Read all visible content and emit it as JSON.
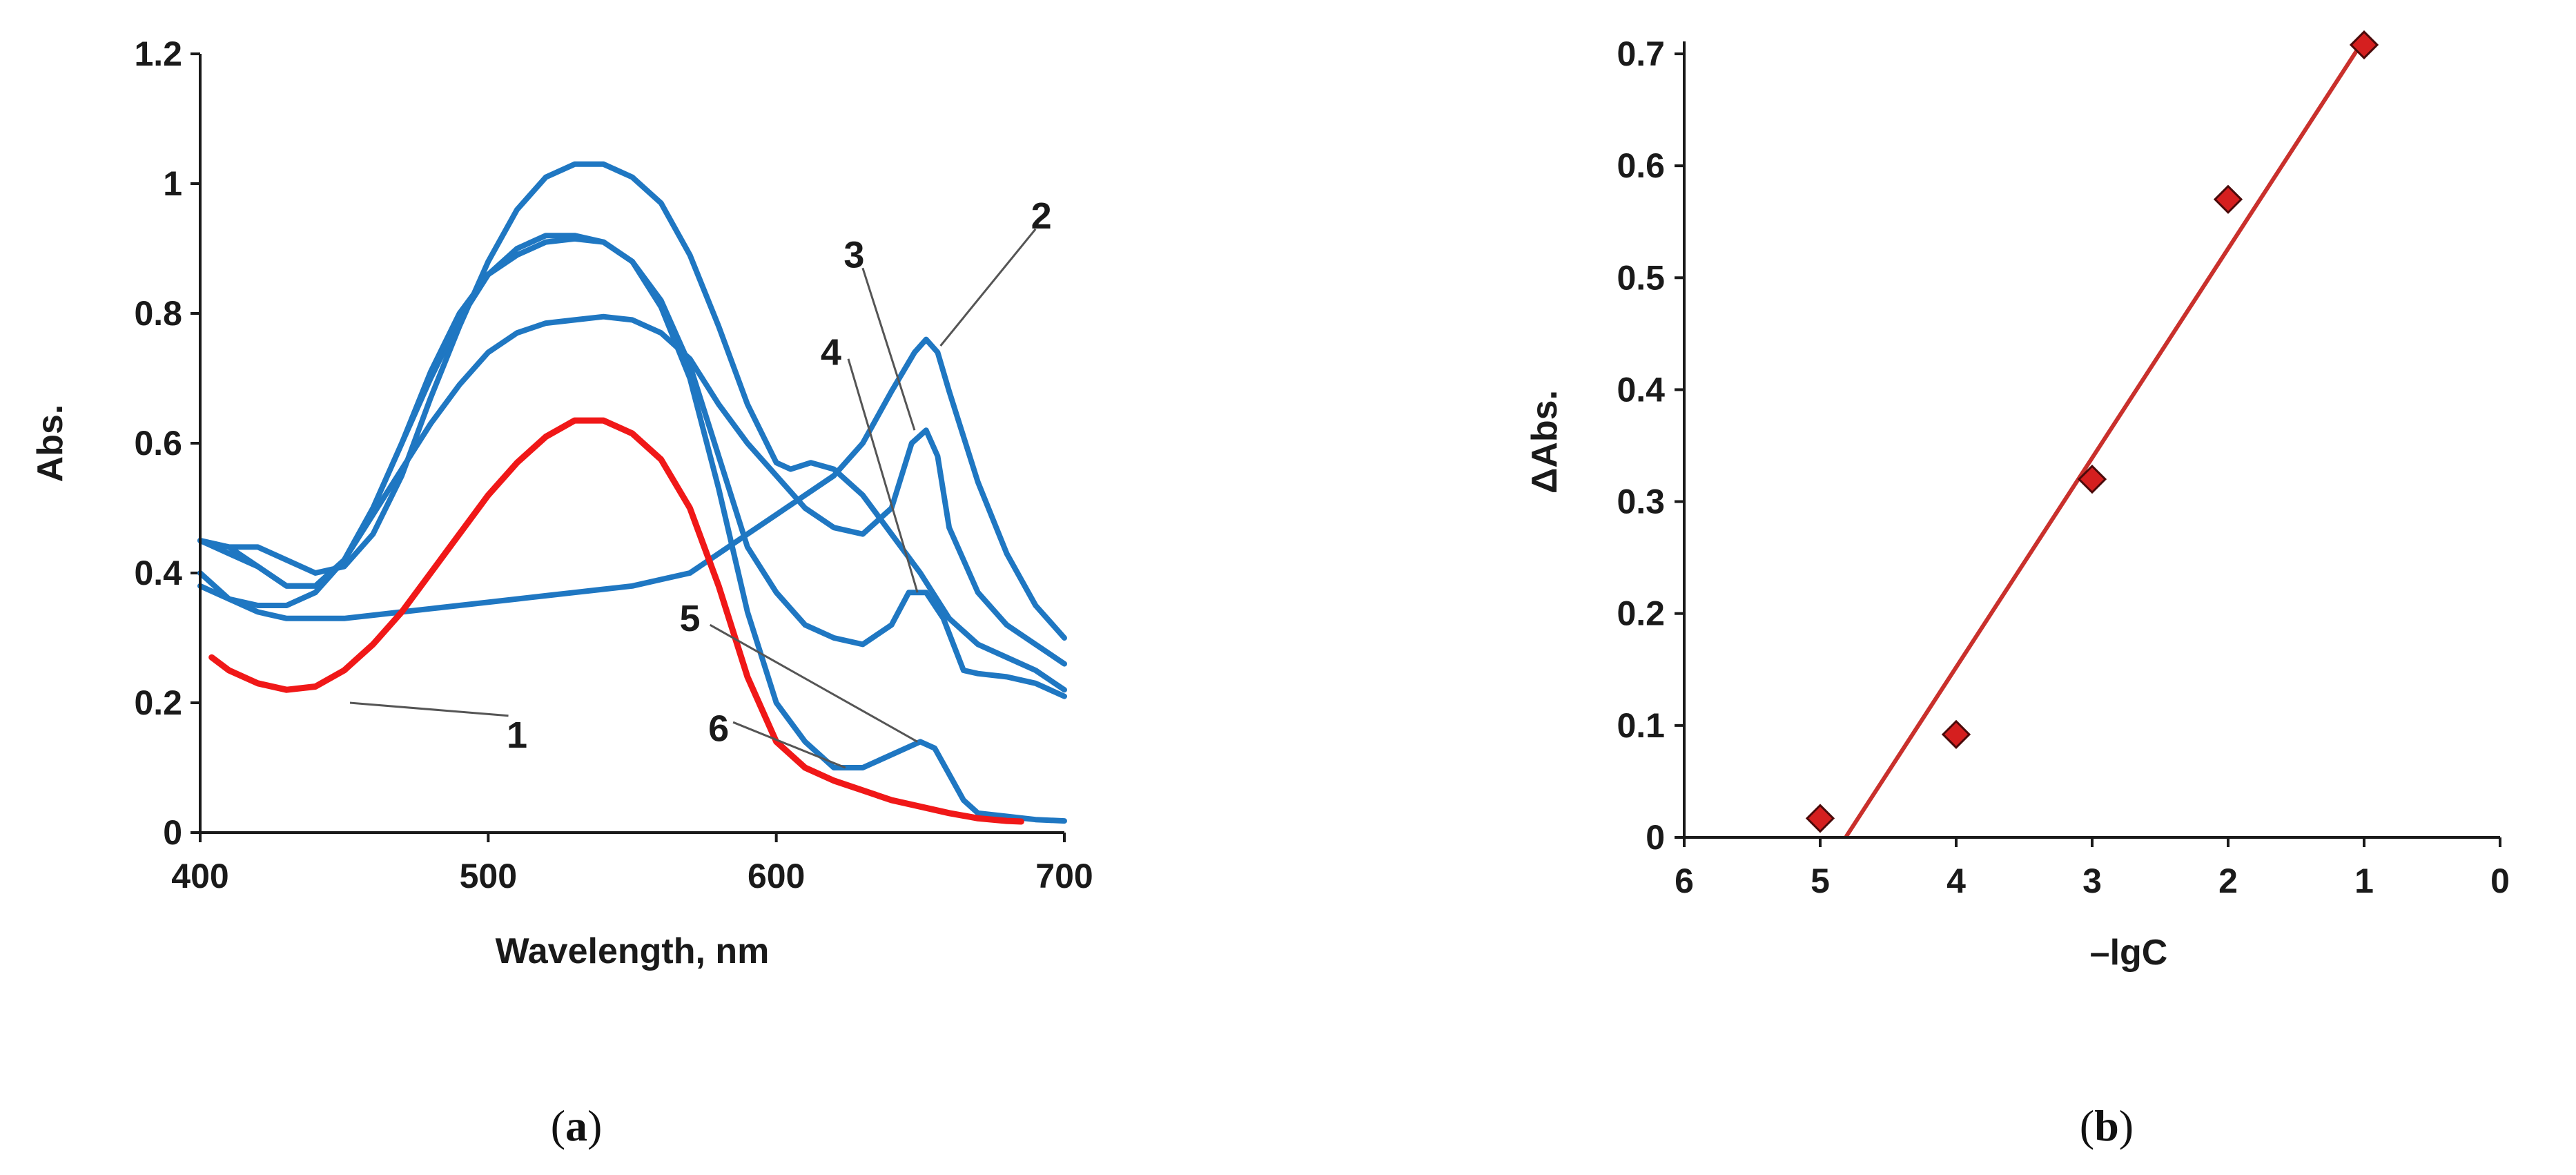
{
  "colors": {
    "blue": "#1F77C2",
    "red": "#F01818",
    "marker": "#D51F1F",
    "fit": "#C9302C",
    "axis": "#1a1a1a"
  },
  "chart_data": [
    {
      "id": "a",
      "type": "line",
      "panel_label": {
        "open": "(",
        "letter": "a",
        "close": ")"
      },
      "xlabel": "Wavelength, nm",
      "ylabel": "Abs.",
      "xlim": [
        400,
        700
      ],
      "ylim": [
        0,
        1.2
      ],
      "xticks": [
        {
          "v": 400,
          "label": "400"
        },
        {
          "v": 500,
          "label": "500"
        },
        {
          "v": 600,
          "label": "600"
        },
        {
          "v": 700,
          "label": "700"
        }
      ],
      "yticks": [
        {
          "v": 0,
          "label": "0"
        },
        {
          "v": 0.2,
          "label": "0.2"
        },
        {
          "v": 0.4,
          "label": "0.4"
        },
        {
          "v": 0.6,
          "label": "0.6"
        },
        {
          "v": 0.8,
          "label": "0.8"
        },
        {
          "v": 1,
          "label": "1"
        },
        {
          "v": 1.2,
          "label": "1.2"
        }
      ],
      "series": [
        {
          "name": "1",
          "color": "red",
          "points": [
            [
              404,
              0.27
            ],
            [
              410,
              0.25
            ],
            [
              420,
              0.23
            ],
            [
              430,
              0.22
            ],
            [
              440,
              0.225
            ],
            [
              450,
              0.25
            ],
            [
              460,
              0.29
            ],
            [
              470,
              0.34
            ],
            [
              480,
              0.4
            ],
            [
              490,
              0.46
            ],
            [
              500,
              0.52
            ],
            [
              510,
              0.57
            ],
            [
              520,
              0.61
            ],
            [
              530,
              0.635
            ],
            [
              540,
              0.635
            ],
            [
              550,
              0.615
            ],
            [
              560,
              0.575
            ],
            [
              570,
              0.5
            ],
            [
              580,
              0.38
            ],
            [
              590,
              0.24
            ],
            [
              600,
              0.14
            ],
            [
              610,
              0.1
            ],
            [
              620,
              0.08
            ],
            [
              630,
              0.065
            ],
            [
              640,
              0.05
            ],
            [
              650,
              0.04
            ],
            [
              660,
              0.03
            ],
            [
              670,
              0.022
            ],
            [
              680,
              0.018
            ],
            [
              685,
              0.017
            ]
          ]
        },
        {
          "name": "2",
          "color": "blue",
          "points": [
            [
              400,
              0.4
            ],
            [
              410,
              0.36
            ],
            [
              420,
              0.34
            ],
            [
              430,
              0.33
            ],
            [
              440,
              0.33
            ],
            [
              450,
              0.33
            ],
            [
              460,
              0.335
            ],
            [
              470,
              0.34
            ],
            [
              480,
              0.345
            ],
            [
              490,
              0.35
            ],
            [
              500,
              0.355
            ],
            [
              510,
              0.36
            ],
            [
              520,
              0.365
            ],
            [
              530,
              0.37
            ],
            [
              540,
              0.375
            ],
            [
              550,
              0.38
            ],
            [
              560,
              0.39
            ],
            [
              570,
              0.4
            ],
            [
              580,
              0.43
            ],
            [
              590,
              0.46
            ],
            [
              600,
              0.49
            ],
            [
              610,
              0.52
            ],
            [
              620,
              0.55
            ],
            [
              630,
              0.6
            ],
            [
              640,
              0.68
            ],
            [
              648,
              0.74
            ],
            [
              652,
              0.76
            ],
            [
              656,
              0.74
            ],
            [
              660,
              0.68
            ],
            [
              670,
              0.54
            ],
            [
              680,
              0.43
            ],
            [
              690,
              0.35
            ],
            [
              700,
              0.3
            ]
          ]
        },
        {
          "name": "3",
          "color": "blue",
          "points": [
            [
              400,
              0.45
            ],
            [
              410,
              0.44
            ],
            [
              420,
              0.41
            ],
            [
              430,
              0.38
            ],
            [
              440,
              0.38
            ],
            [
              450,
              0.42
            ],
            [
              460,
              0.49
            ],
            [
              470,
              0.56
            ],
            [
              480,
              0.63
            ],
            [
              490,
              0.69
            ],
            [
              500,
              0.74
            ],
            [
              510,
              0.77
            ],
            [
              520,
              0.785
            ],
            [
              530,
              0.79
            ],
            [
              540,
              0.795
            ],
            [
              550,
              0.79
            ],
            [
              560,
              0.77
            ],
            [
              570,
              0.73
            ],
            [
              580,
              0.66
            ],
            [
              590,
              0.6
            ],
            [
              600,
              0.55
            ],
            [
              610,
              0.5
            ],
            [
              620,
              0.47
            ],
            [
              630,
              0.46
            ],
            [
              640,
              0.5
            ],
            [
              647,
              0.6
            ],
            [
              652,
              0.62
            ],
            [
              656,
              0.58
            ],
            [
              660,
              0.47
            ],
            [
              670,
              0.37
            ],
            [
              680,
              0.32
            ],
            [
              690,
              0.29
            ],
            [
              700,
              0.26
            ]
          ]
        },
        {
          "name": "4",
          "color": "blue",
          "points": [
            [
              400,
              0.45
            ],
            [
              410,
              0.44
            ],
            [
              420,
              0.44
            ],
            [
              430,
              0.42
            ],
            [
              440,
              0.4
            ],
            [
              450,
              0.41
            ],
            [
              460,
              0.46
            ],
            [
              470,
              0.55
            ],
            [
              480,
              0.67
            ],
            [
              490,
              0.78
            ],
            [
              500,
              0.88
            ],
            [
              510,
              0.96
            ],
            [
              520,
              1.01
            ],
            [
              530,
              1.03
            ],
            [
              540,
              1.03
            ],
            [
              550,
              1.01
            ],
            [
              560,
              0.97
            ],
            [
              570,
              0.89
            ],
            [
              580,
              0.78
            ],
            [
              590,
              0.66
            ],
            [
              600,
              0.57
            ],
            [
              605,
              0.56
            ],
            [
              612,
              0.57
            ],
            [
              620,
              0.56
            ],
            [
              630,
              0.52
            ],
            [
              640,
              0.46
            ],
            [
              650,
              0.4
            ],
            [
              660,
              0.33
            ],
            [
              670,
              0.29
            ],
            [
              680,
              0.27
            ],
            [
              690,
              0.25
            ],
            [
              700,
              0.22
            ]
          ]
        },
        {
          "name": "5",
          "color": "blue",
          "points": [
            [
              400,
              0.38
            ],
            [
              410,
              0.36
            ],
            [
              420,
              0.35
            ],
            [
              430,
              0.35
            ],
            [
              440,
              0.37
            ],
            [
              450,
              0.42
            ],
            [
              460,
              0.5
            ],
            [
              470,
              0.6
            ],
            [
              480,
              0.7
            ],
            [
              490,
              0.79
            ],
            [
              500,
              0.86
            ],
            [
              510,
              0.9
            ],
            [
              520,
              0.92
            ],
            [
              530,
              0.92
            ],
            [
              540,
              0.91
            ],
            [
              550,
              0.88
            ],
            [
              560,
              0.82
            ],
            [
              570,
              0.72
            ],
            [
              580,
              0.58
            ],
            [
              590,
              0.44
            ],
            [
              600,
              0.37
            ],
            [
              610,
              0.32
            ],
            [
              620,
              0.3
            ],
            [
              630,
              0.29
            ],
            [
              640,
              0.32
            ],
            [
              646,
              0.37
            ],
            [
              652,
              0.37
            ],
            [
              658,
              0.33
            ],
            [
              665,
              0.25
            ],
            [
              670,
              0.245
            ],
            [
              680,
              0.24
            ],
            [
              690,
              0.23
            ],
            [
              700,
              0.21
            ]
          ]
        },
        {
          "name": "6",
          "color": "blue",
          "points": [
            [
              400,
              0.45
            ],
            [
              410,
              0.43
            ],
            [
              420,
              0.41
            ],
            [
              430,
              0.38
            ],
            [
              440,
              0.38
            ],
            [
              450,
              0.42
            ],
            [
              460,
              0.5
            ],
            [
              470,
              0.6
            ],
            [
              480,
              0.71
            ],
            [
              490,
              0.8
            ],
            [
              500,
              0.86
            ],
            [
              510,
              0.89
            ],
            [
              520,
              0.91
            ],
            [
              530,
              0.915
            ],
            [
              540,
              0.91
            ],
            [
              550,
              0.88
            ],
            [
              560,
              0.81
            ],
            [
              570,
              0.7
            ],
            [
              580,
              0.53
            ],
            [
              590,
              0.34
            ],
            [
              600,
              0.2
            ],
            [
              610,
              0.14
            ],
            [
              620,
              0.1
            ],
            [
              630,
              0.1
            ],
            [
              640,
              0.12
            ],
            [
              650,
              0.14
            ],
            [
              655,
              0.13
            ],
            [
              660,
              0.09
            ],
            [
              665,
              0.05
            ],
            [
              670,
              0.03
            ],
            [
              680,
              0.025
            ],
            [
              690,
              0.02
            ],
            [
              700,
              0.018
            ]
          ]
        }
      ],
      "annotations": [
        {
          "label": "1",
          "from": [
            452,
            0.2
          ],
          "to": [
            507,
            0.18
          ],
          "text_at": [
            510,
            0.15
          ]
        },
        {
          "label": "2",
          "from": [
            657,
            0.75
          ],
          "to": [
            690,
            0.93
          ],
          "text_at": [
            692,
            0.95
          ]
        },
        {
          "label": "3",
          "from": [
            648,
            0.62
          ],
          "to": [
            630,
            0.87
          ],
          "text_at": [
            627,
            0.89
          ]
        },
        {
          "label": "4",
          "from": [
            649,
            0.37
          ],
          "to": [
            625,
            0.73
          ],
          "text_at": [
            619,
            0.74
          ]
        },
        {
          "label": "5",
          "from": [
            649,
            0.14
          ],
          "to": [
            577,
            0.32
          ],
          "text_at": [
            570,
            0.33
          ]
        },
        {
          "label": "6",
          "from": [
            624,
            0.1
          ],
          "to": [
            585,
            0.17
          ],
          "text_at": [
            580,
            0.16
          ]
        }
      ]
    },
    {
      "id": "b",
      "type": "scatter",
      "panel_label": {
        "open": "(",
        "letter": "b",
        "close": ")"
      },
      "xlabel": "–lgC",
      "ylabel": "ΔAbs.",
      "xlim": [
        6,
        0
      ],
      "ylim": [
        0,
        0.7
      ],
      "xticks": [
        {
          "v": 6,
          "label": "6"
        },
        {
          "v": 5,
          "label": "5"
        },
        {
          "v": 4,
          "label": "4"
        },
        {
          "v": 3,
          "label": "3"
        },
        {
          "v": 2,
          "label": "2"
        },
        {
          "v": 1,
          "label": "1"
        },
        {
          "v": 0,
          "label": "0"
        }
      ],
      "yticks": [
        {
          "v": 0,
          "label": "0"
        },
        {
          "v": 0.1,
          "label": "0.1"
        },
        {
          "v": 0.2,
          "label": "0.2"
        },
        {
          "v": 0.3,
          "label": "0.3"
        },
        {
          "v": 0.4,
          "label": "0.4"
        },
        {
          "v": 0.5,
          "label": "0.5"
        },
        {
          "v": 0.6,
          "label": "0.6"
        },
        {
          "v": 0.7,
          "label": "0.7"
        }
      ],
      "points": [
        {
          "x": 5,
          "y": 0.017
        },
        {
          "x": 4,
          "y": 0.092
        },
        {
          "x": 3,
          "y": 0.32
        },
        {
          "x": 2,
          "y": 0.57
        },
        {
          "x": 1,
          "y": 0.708
        }
      ],
      "fit": {
        "x1": 4.81,
        "x2": 1.02,
        "slope": -0.187,
        "intercept": 0.9
      }
    }
  ]
}
